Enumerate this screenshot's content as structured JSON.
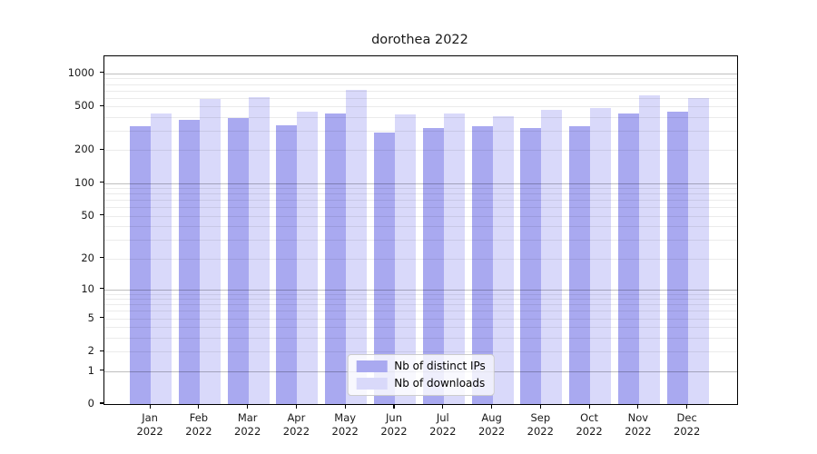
{
  "title": "dorothea 2022",
  "chart_data": {
    "type": "bar",
    "title": "dorothea 2022",
    "categories": [
      "Jan",
      "Feb",
      "Mar",
      "Apr",
      "May",
      "Jun",
      "Jul",
      "Aug",
      "Sep",
      "Oct",
      "Nov",
      "Dec"
    ],
    "category_year": "2022",
    "series": [
      {
        "name": "Nb of distinct IPs",
        "color": "#a9a9f0",
        "values": [
          330,
          380,
          395,
          340,
          436,
          292,
          318,
          328,
          320,
          334,
          432,
          450
        ]
      },
      {
        "name": "Nb of downloads",
        "color": "#d9d9fa",
        "values": [
          428,
          590,
          608,
          452,
          708,
          420,
          436,
          407,
          468,
          480,
          632,
          600
        ]
      }
    ],
    "xlabel": "",
    "ylabel": "",
    "yscale": "log1p",
    "ylim": [
      0,
      1428
    ],
    "yticks": [
      1000,
      500,
      200,
      100,
      50,
      20,
      10,
      5,
      2,
      1,
      0
    ],
    "major_gridlines": [
      1000,
      100,
      10,
      1
    ],
    "grid": true,
    "legend_position": "lower center",
    "background": "#ffffff",
    "colors": {
      "distinct_ips": "#a9a9f0",
      "downloads": "#d9d9fa",
      "major_grid": "rgba(0,0,0,0.25)",
      "minor_grid": "rgba(0,0,0,0.08)"
    }
  }
}
